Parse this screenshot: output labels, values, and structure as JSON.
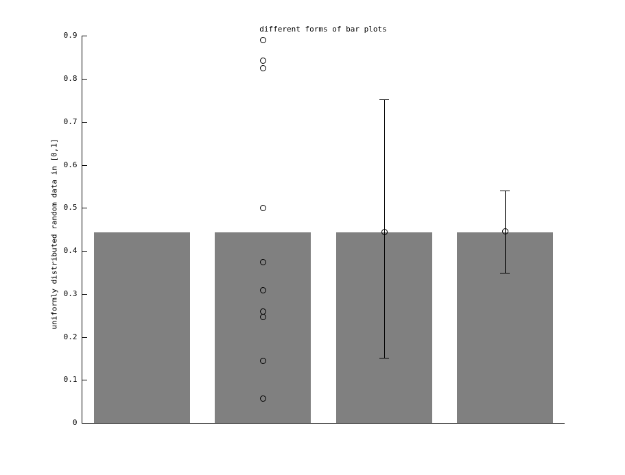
{
  "chart_data": {
    "type": "bar",
    "title": "different forms of bar plots",
    "ylabel": "uniformly distributed random data in [0,1]",
    "xlabel": "",
    "ylim": [
      0,
      0.9
    ],
    "yticks": [
      0,
      0.1,
      0.2,
      0.3,
      0.4,
      0.5,
      0.6,
      0.7,
      0.8,
      0.9
    ],
    "ytick_labels": [
      "0",
      "0.1",
      "0.2",
      "0.3",
      "0.4",
      "0.5",
      "0.6",
      "0.7",
      "0.8",
      "0.9"
    ],
    "grid": false,
    "legend": null,
    "bar_color": "#808080",
    "axis_color": "#000000",
    "background_color": "#ffffff",
    "marker_style": "open-circle",
    "n_points": 10,
    "subplots": [
      {
        "form": "plain bar of the mean",
        "bar_value": 0.443
      },
      {
        "form": "bar of the mean with individual data points",
        "bar_value": 0.443,
        "points": [
          0.89,
          0.843,
          0.825,
          0.5,
          0.373,
          0.308,
          0.259,
          0.246,
          0.145,
          0.057
        ]
      },
      {
        "form": "bar of the mean with std error bar",
        "bar_value": 0.443,
        "errorbar": {
          "center": 0.444,
          "upper": 0.752,
          "lower": 0.152
        }
      },
      {
        "form": "bar of the mean with sem error bar",
        "bar_value": 0.443,
        "errorbar": {
          "center": 0.445,
          "upper": 0.54,
          "lower": 0.349
        }
      }
    ]
  }
}
